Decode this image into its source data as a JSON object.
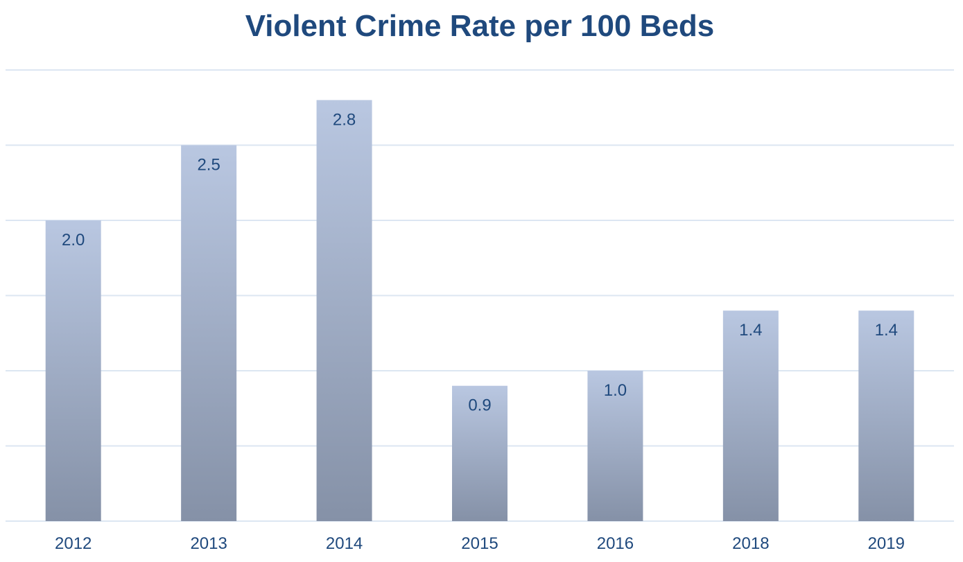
{
  "chart_data": {
    "type": "bar",
    "title": "Violent Crime Rate per 100 Beds",
    "categories": [
      "2012",
      "2013",
      "2014",
      "2015",
      "2016",
      "2018",
      "2019"
    ],
    "values": [
      2.0,
      2.5,
      2.8,
      0.9,
      1.0,
      1.4,
      1.4
    ],
    "data_labels": [
      "2.0",
      "2.5",
      "2.8",
      "0.9",
      "1.0",
      "1.4",
      "1.4"
    ],
    "xlabel": "",
    "ylabel": "",
    "ylim": [
      0,
      3.0
    ],
    "grid_step": 0.5,
    "grid": true,
    "y_tick_labels_shown": false,
    "legend": "none",
    "colors": {
      "title": "#1f497d",
      "labels": "#1f497d",
      "bar_top": "#b9c7e1",
      "bar_bottom": "#8591a7",
      "grid": "#dce6f2"
    }
  }
}
